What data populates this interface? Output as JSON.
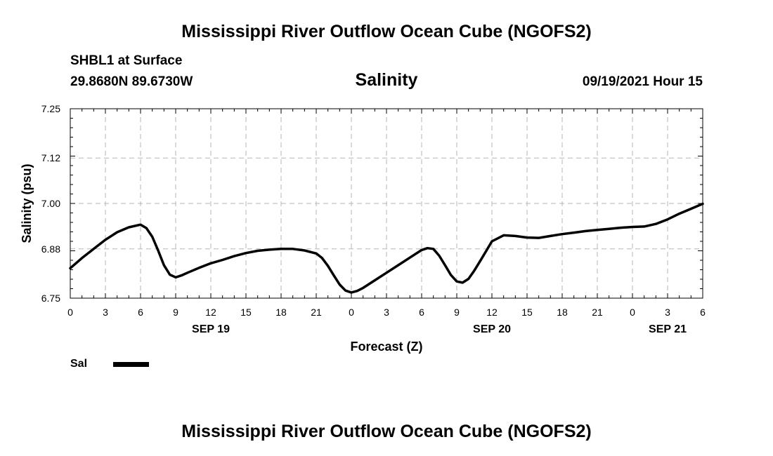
{
  "header": {
    "title_top": "Mississippi River Outflow Ocean Cube (NGOFS2)",
    "station": "SHBL1 at Surface",
    "coords": "29.8680N  89.6730W",
    "variable": "Salinity",
    "datetime": "09/19/2021 Hour 15"
  },
  "legend": {
    "label": "Sal",
    "color": "#000000"
  },
  "footer": {
    "title_bottom": "Mississippi River Outflow Ocean Cube (NGOFS2)"
  },
  "chart_data": {
    "type": "line",
    "title": "Salinity",
    "xlabel": "Forecast (Z)",
    "ylabel": "Salinity (psu)",
    "ylim": [
      6.75,
      7.25
    ],
    "xlim": [
      0,
      54
    ],
    "grid": true,
    "yticks": [
      6.75,
      6.88,
      7.0,
      7.12,
      7.25
    ],
    "ytick_labels": [
      "6.75",
      "6.88",
      "7.00",
      "7.12",
      "7.25"
    ],
    "xticks": [
      0,
      3,
      6,
      9,
      12,
      15,
      18,
      21,
      24,
      27,
      30,
      33,
      36,
      39,
      42,
      45,
      48,
      51,
      54
    ],
    "xtick_labels": [
      "0",
      "3",
      "6",
      "9",
      "12",
      "15",
      "18",
      "21",
      "0",
      "3",
      "6",
      "9",
      "12",
      "15",
      "18",
      "21",
      "0",
      "3",
      "6"
    ],
    "date_labels": [
      {
        "x": 12,
        "label": "SEP 19"
      },
      {
        "x": 36,
        "label": "SEP 20"
      },
      {
        "x": 51,
        "label": "SEP 21"
      }
    ],
    "series": [
      {
        "name": "Sal",
        "color": "#000000",
        "x": [
          0,
          1,
          2,
          3,
          4,
          5,
          6,
          6.5,
          7,
          7.5,
          8,
          8.5,
          9,
          9.5,
          10,
          11,
          12,
          13,
          14,
          15,
          16,
          17,
          18,
          19,
          20,
          21,
          21.5,
          22,
          22.5,
          23,
          23.5,
          24,
          24.5,
          25,
          26,
          27,
          28,
          29,
          30,
          30.5,
          31,
          31.5,
          32,
          32.5,
          33,
          33.5,
          34,
          34.5,
          35,
          35.5,
          36,
          37,
          38,
          39,
          40,
          41,
          42,
          43,
          44,
          45,
          46,
          47,
          48,
          49,
          50,
          51,
          52,
          53,
          54
        ],
        "y": [
          6.829,
          6.856,
          6.88,
          6.904,
          6.924,
          6.937,
          6.944,
          6.935,
          6.912,
          6.876,
          6.837,
          6.812,
          6.805,
          6.81,
          6.817,
          6.83,
          6.842,
          6.851,
          6.861,
          6.869,
          6.875,
          6.878,
          6.88,
          6.88,
          6.876,
          6.868,
          6.856,
          6.835,
          6.81,
          6.786,
          6.77,
          6.765,
          6.769,
          6.777,
          6.797,
          6.817,
          6.837,
          6.857,
          6.877,
          6.882,
          6.88,
          6.862,
          6.837,
          6.811,
          6.794,
          6.791,
          6.801,
          6.823,
          6.848,
          6.874,
          6.9,
          6.916,
          6.914,
          6.91,
          6.909,
          6.914,
          6.919,
          6.923,
          6.927,
          6.93,
          6.933,
          6.936,
          6.938,
          6.939,
          6.946,
          6.958,
          6.973,
          6.986,
          6.999
        ]
      }
    ]
  }
}
